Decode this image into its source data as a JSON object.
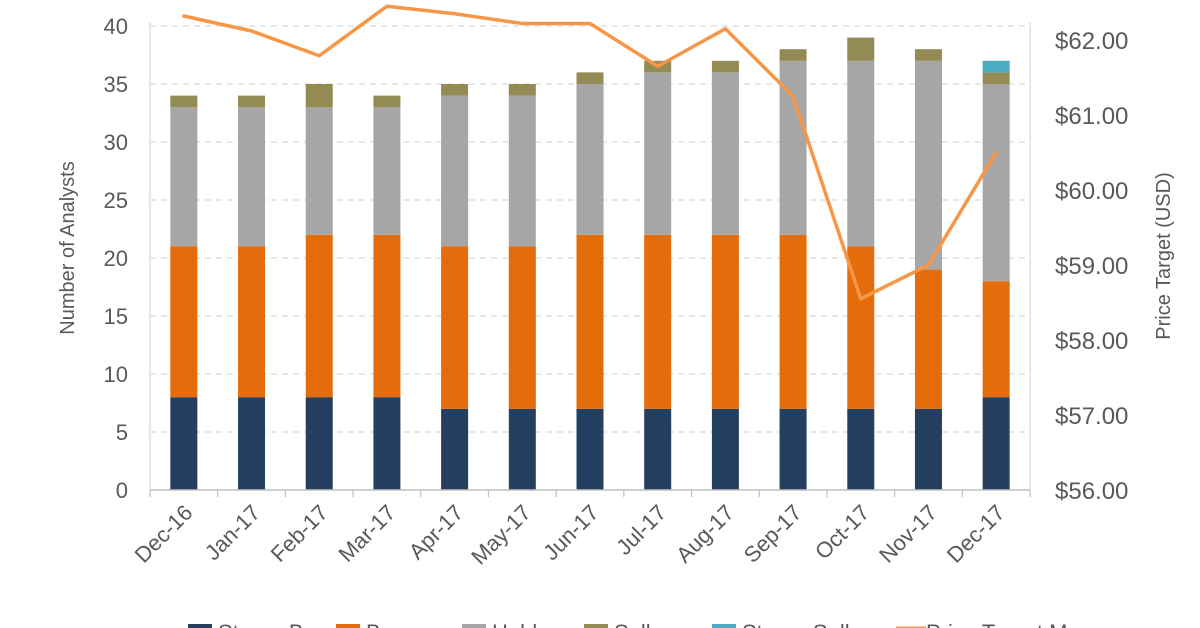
{
  "chart_data": {
    "type": "bar",
    "stacked": true,
    "categories": [
      "Dec-16",
      "Jan-17",
      "Feb-17",
      "Mar-17",
      "Apr-17",
      "May-17",
      "Jun-17",
      "Jul-17",
      "Aug-17",
      "Sep-17",
      "Oct-17",
      "Nov-17",
      "Dec-17"
    ],
    "series": [
      {
        "name": "Strong Buy",
        "color": "#243f60",
        "values": [
          8,
          8,
          8,
          8,
          7,
          7,
          7,
          7,
          7,
          7,
          7,
          7,
          8
        ]
      },
      {
        "name": "Buy",
        "color": "#e46c0a",
        "values": [
          13,
          13,
          14,
          14,
          14,
          14,
          15,
          15,
          15,
          15,
          14,
          12,
          10
        ]
      },
      {
        "name": "Hold",
        "color": "#a6a6a6",
        "values": [
          12,
          12,
          11,
          11,
          13,
          13,
          13,
          14,
          14,
          15,
          16,
          18,
          17
        ]
      },
      {
        "name": "Sell",
        "color": "#948a54",
        "values": [
          1,
          1,
          2,
          1,
          1,
          1,
          1,
          1,
          1,
          1,
          2,
          1,
          1
        ]
      },
      {
        "name": "Strong Sell",
        "color": "#4bacc6",
        "values": [
          0,
          0,
          0,
          0,
          0,
          0,
          0,
          0,
          0,
          0,
          0,
          0,
          1
        ]
      }
    ],
    "line_series": {
      "name": "Price Target Mean",
      "color": "#f79646",
      "axis": "right",
      "values": [
        62.32,
        62.12,
        61.79,
        62.45,
        62.35,
        62.22,
        62.22,
        61.65,
        62.15,
        61.25,
        58.55,
        59.0,
        60.5
      ]
    },
    "ylabel": "Number of Analysts",
    "ylim": [
      0,
      40
    ],
    "yticks": [
      "0",
      "5",
      "10",
      "15",
      "20",
      "25",
      "30",
      "35",
      "40"
    ],
    "y2label": "Price Target (USD)",
    "y2lim": [
      56,
      62.5
    ],
    "y2ticks": [
      "$56.00",
      "$57.00",
      "$58.00",
      "$59.00",
      "$60.00",
      "$61.00",
      "$62.00"
    ],
    "grid": true,
    "legend": "bottom"
  }
}
